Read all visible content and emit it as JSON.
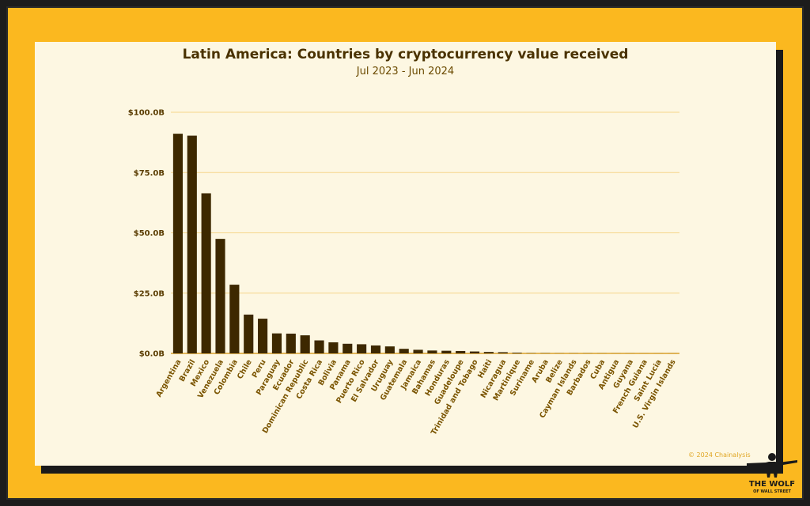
{
  "chart_data": {
    "type": "bar",
    "title": "Latin America: Countries by cryptocurrency value received",
    "subtitle": "Jul 2023 - Jun 2024",
    "xlabel": "",
    "ylabel": "",
    "ylim": [
      0,
      100
    ],
    "yticks": [
      "$0.0B",
      "$25.0B",
      "$50.0B",
      "$75.0B",
      "$100.0B"
    ],
    "grid": true,
    "categories": [
      "Argentina",
      "Brazil",
      "Mexico",
      "Venezuela",
      "Colombia",
      "Chile",
      "Peru",
      "Paraguay",
      "Ecuador",
      "Dominican Republic",
      "Costa Rica",
      "Bolivia",
      "Panama",
      "Puerto Rico",
      "El Salvador",
      "Uruguay",
      "Guatemala",
      "Jamaica",
      "Bahamas",
      "Honduras",
      "Guadeloupe",
      "Trinidad and Tobago",
      "Haiti",
      "Nicaragua",
      "Martinique",
      "Suriname",
      "Aruba",
      "Belize",
      "Cayman Islands",
      "Barbados",
      "Cuba",
      "Antigua",
      "Guyana",
      "French Guiana",
      "Saint Lucia",
      "U.S. Virgin Islands"
    ],
    "values": [
      91.1,
      90.3,
      66.4,
      47.5,
      28.5,
      16.1,
      14.4,
      8.3,
      8.2,
      7.5,
      5.4,
      4.6,
      4.0,
      3.8,
      3.3,
      2.9,
      1.9,
      1.5,
      1.2,
      1.1,
      1.0,
      0.8,
      0.6,
      0.5,
      0.3,
      0.1,
      0.1,
      0.05,
      0.05,
      0.05,
      0.04,
      0.03,
      0.03,
      0.02,
      0.02,
      0.02
    ],
    "bar_color": "#3d2800",
    "grid_color": "#f5d58a"
  },
  "footer": {
    "copyright": "© 2024 Chainalysis"
  },
  "logo": {
    "line1": "THE WOLF",
    "line2": "OF WALL STREET"
  }
}
